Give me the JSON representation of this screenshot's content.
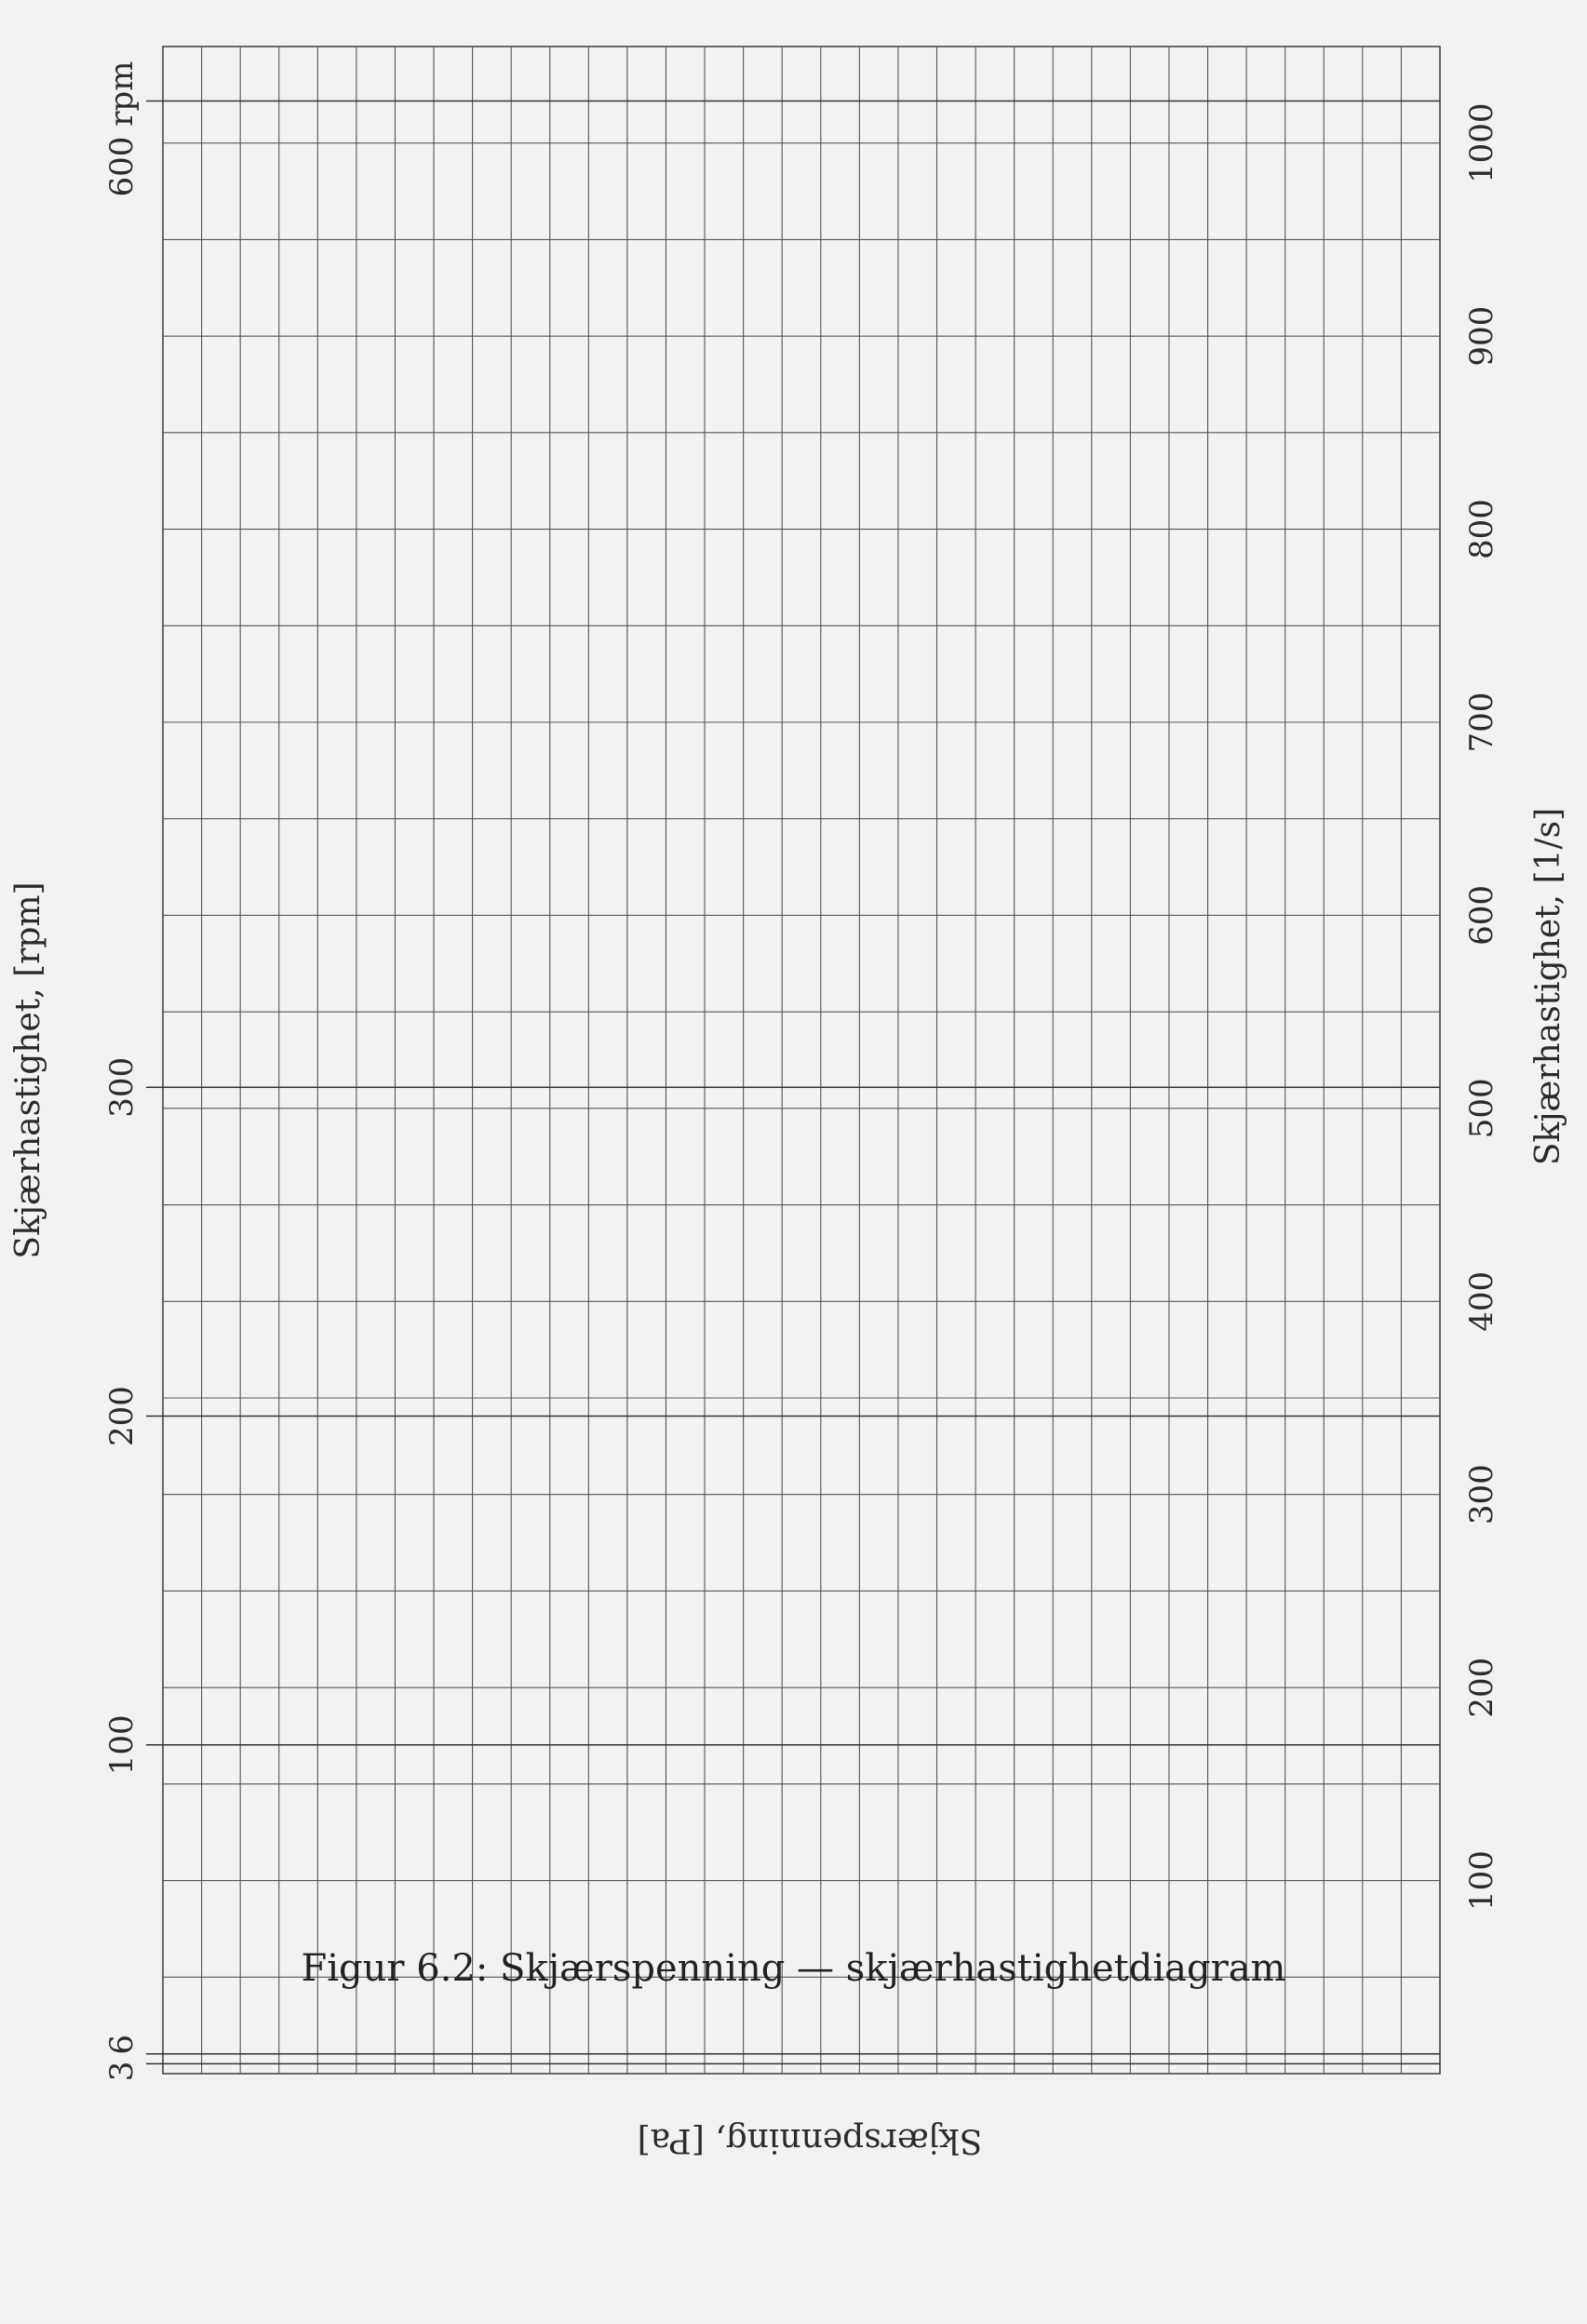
{
  "chart_data": {
    "type": "grid",
    "description_rotation": "page is rotated 90 degrees; shear-rate axis runs along the page height",
    "rpm_axis": {
      "label": "Skjærhastighet, [rpm]",
      "ticks": [
        {
          "value": 3,
          "text": "3"
        },
        {
          "value": 6,
          "text": "6"
        },
        {
          "value": 100,
          "text": "100"
        },
        {
          "value": 200,
          "text": "200"
        },
        {
          "value": 300,
          "text": "300"
        },
        {
          "value": 600,
          "text": "600 rpm"
        }
      ]
    },
    "shear_rate_axis": {
      "label": "Skjærhastighet, [1/s]",
      "ticks": [
        100,
        200,
        300,
        400,
        500,
        600,
        700,
        800,
        900,
        1000
      ],
      "range": [
        0,
        1050
      ],
      "grid_step": 50
    },
    "stress_axis": {
      "label": "Skjærspenning, [Pa]",
      "vertical_lines": 33
    },
    "grid": true,
    "rpm_to_shear_rate_factor": 1.703
  },
  "caption": "Figur 6.2: Skjærspenning — skjærhastighetdiagram"
}
